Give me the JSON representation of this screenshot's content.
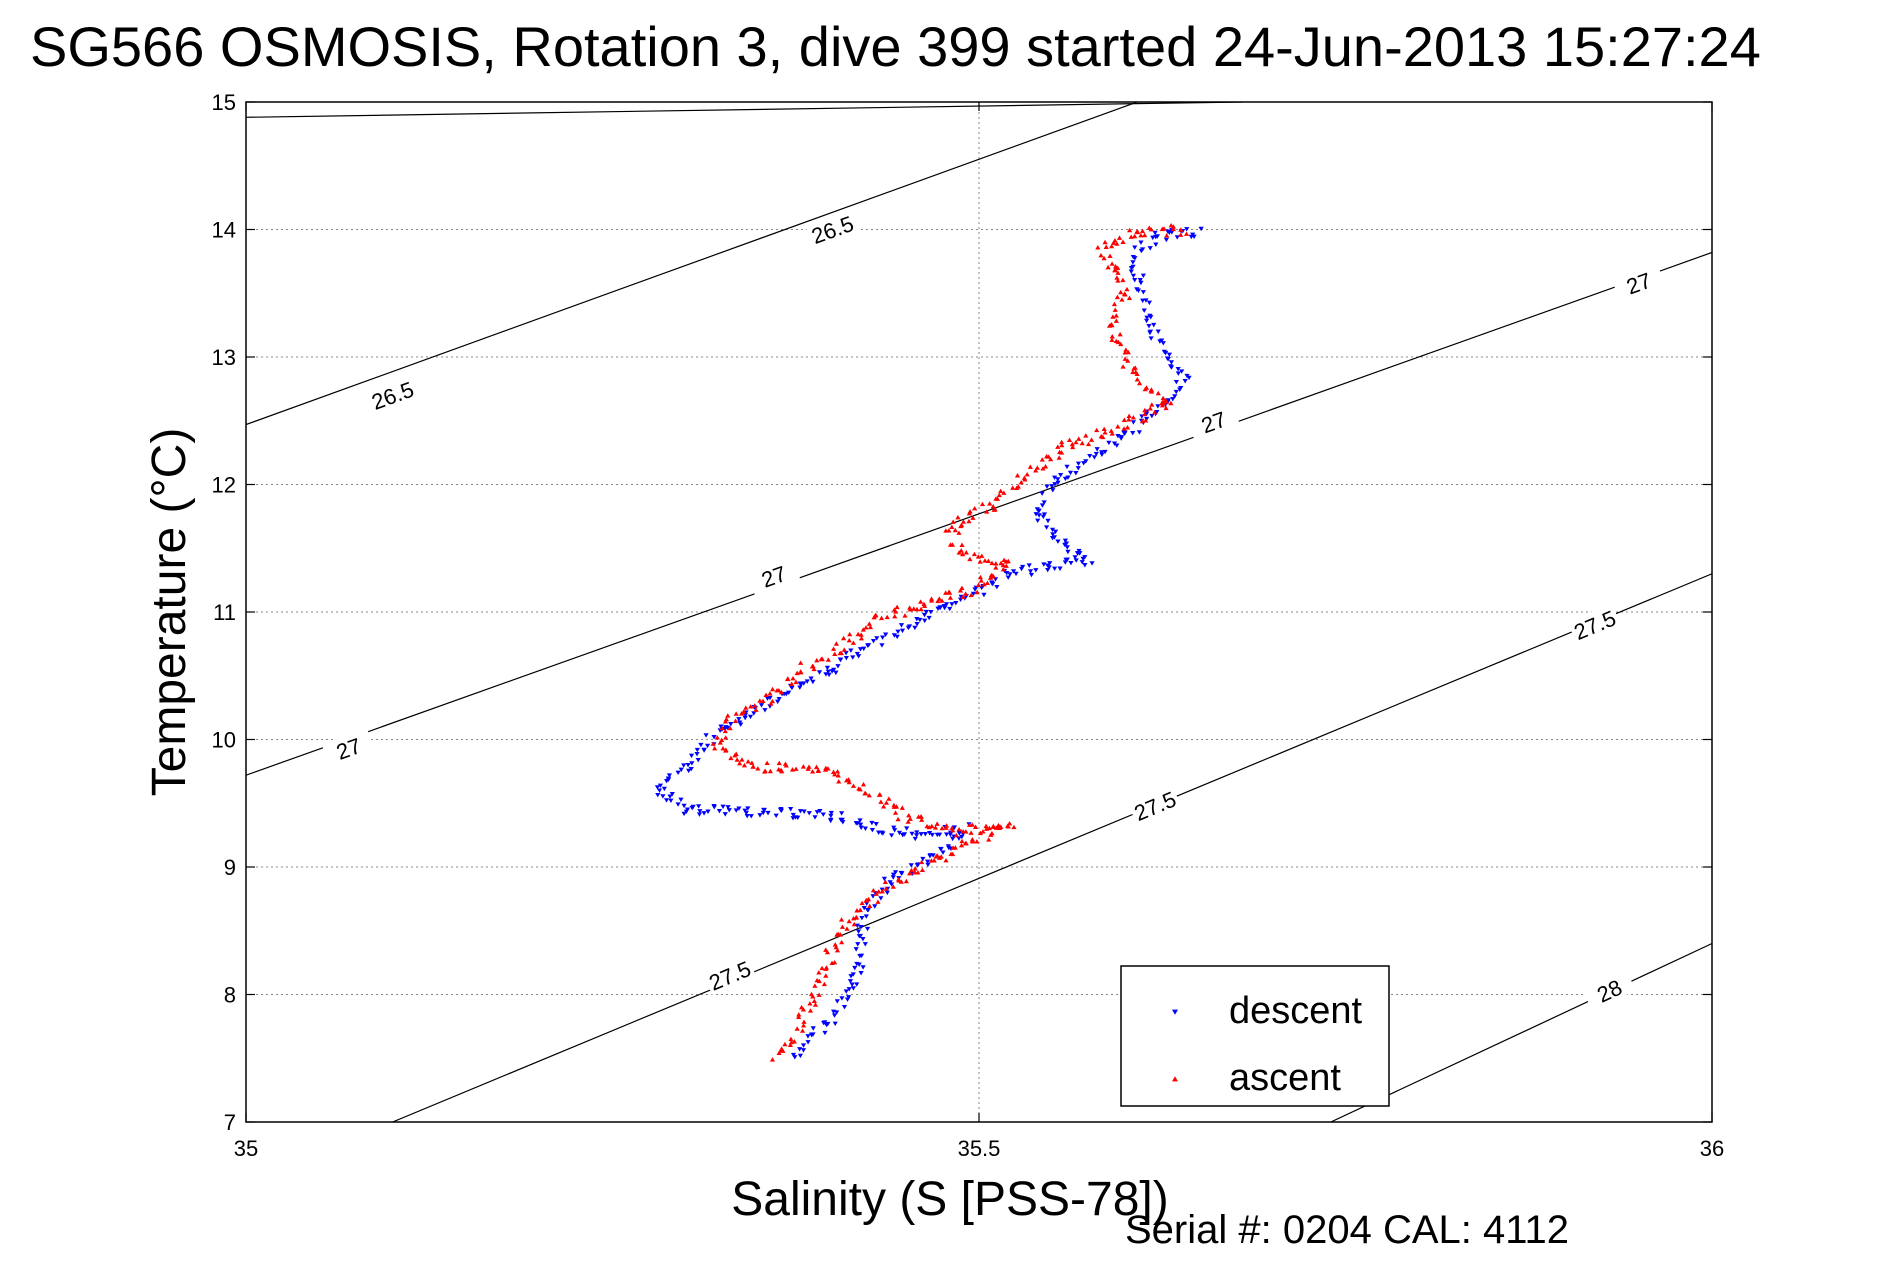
{
  "title": "SG566 OSMOSIS, Rotation 3, dive 399 started 24-Jun-2013 15:27:24",
  "footer": "Serial #: 0204  CAL: 4112",
  "colors": {
    "descent": "#0000ff",
    "ascent": "#ff0000",
    "axis": "#000000",
    "grid": "#888888"
  },
  "chart_data": {
    "type": "scatter",
    "title": "SG566 OSMOSIS, Rotation 3, dive 399 started 24-Jun-2013 15:27:24",
    "xlabel": "Salinity (S [PSS-78])",
    "ylabel": "Temperature (°C)",
    "xlim": [
      35,
      36
    ],
    "ylim": [
      7,
      15
    ],
    "xticks": [
      "35",
      "35.5",
      "36"
    ],
    "yticks": [
      "7",
      "8",
      "9",
      "10",
      "11",
      "12",
      "13",
      "14",
      "15"
    ],
    "grid": true,
    "legend": {
      "placement": "bottom-right",
      "entries": [
        "descent",
        "ascent"
      ]
    },
    "series": [
      {
        "name": "descent",
        "color": "#0000ff",
        "marker": "triangle-down",
        "path": [
          [
            35.65,
            13.97
          ],
          [
            35.62,
            13.95
          ],
          [
            35.605,
            13.8
          ],
          [
            35.61,
            13.55
          ],
          [
            35.615,
            13.3
          ],
          [
            35.625,
            13.05
          ],
          [
            35.64,
            12.85
          ],
          [
            35.625,
            12.6
          ],
          [
            35.6,
            12.4
          ],
          [
            35.575,
            12.2
          ],
          [
            35.55,
            12.0
          ],
          [
            35.54,
            11.75
          ],
          [
            35.555,
            11.55
          ],
          [
            35.575,
            11.42
          ],
          [
            35.52,
            11.3
          ],
          [
            35.49,
            11.1
          ],
          [
            35.46,
            10.95
          ],
          [
            35.43,
            10.75
          ],
          [
            35.39,
            10.5
          ],
          [
            35.35,
            10.25
          ],
          [
            35.32,
            10.05
          ],
          [
            35.3,
            9.8
          ],
          [
            35.28,
            9.6
          ],
          [
            35.3,
            9.45
          ],
          [
            35.36,
            9.42
          ],
          [
            35.4,
            9.4
          ],
          [
            35.43,
            9.3
          ],
          [
            35.46,
            9.25
          ],
          [
            35.49,
            9.3
          ],
          [
            35.48,
            9.15
          ],
          [
            35.44,
            8.9
          ],
          [
            35.42,
            8.6
          ],
          [
            35.42,
            8.25
          ],
          [
            35.41,
            8.0
          ],
          [
            35.4,
            7.8
          ],
          [
            35.38,
            7.6
          ],
          [
            35.37,
            7.5
          ]
        ]
      },
      {
        "name": "ascent",
        "color": "#ff0000",
        "marker": "triangle-up",
        "path": [
          [
            35.64,
            14.0
          ],
          [
            35.6,
            13.98
          ],
          [
            35.585,
            13.85
          ],
          [
            35.59,
            13.72
          ],
          [
            35.6,
            13.5
          ],
          [
            35.59,
            13.3
          ],
          [
            35.6,
            13.0
          ],
          [
            35.61,
            12.8
          ],
          [
            35.63,
            12.65
          ],
          [
            35.6,
            12.48
          ],
          [
            35.56,
            12.3
          ],
          [
            35.535,
            12.1
          ],
          [
            35.51,
            11.85
          ],
          [
            35.48,
            11.65
          ],
          [
            35.49,
            11.45
          ],
          [
            35.52,
            11.38
          ],
          [
            35.5,
            11.2
          ],
          [
            35.46,
            11.05
          ],
          [
            35.43,
            10.95
          ],
          [
            35.41,
            10.75
          ],
          [
            35.38,
            10.55
          ],
          [
            35.36,
            10.35
          ],
          [
            35.33,
            10.15
          ],
          [
            35.32,
            9.95
          ],
          [
            35.34,
            9.8
          ],
          [
            35.4,
            9.75
          ],
          [
            35.43,
            9.55
          ],
          [
            35.45,
            9.4
          ],
          [
            35.48,
            9.28
          ],
          [
            35.52,
            9.35
          ],
          [
            35.47,
            9.05
          ],
          [
            35.43,
            8.8
          ],
          [
            35.41,
            8.55
          ],
          [
            35.4,
            8.35
          ],
          [
            35.39,
            8.05
          ],
          [
            35.38,
            7.8
          ],
          [
            35.37,
            7.6
          ],
          [
            35.36,
            7.5
          ]
        ]
      }
    ],
    "contours": [
      {
        "label": "26.5",
        "points": [
          [
            35.0,
            14.88
          ],
          [
            35.68,
            15.0
          ]
        ],
        "labels_at": []
      },
      {
        "label": "26.5",
        "points": [
          [
            35.0,
            12.47
          ],
          [
            35.68,
            15.3
          ]
        ],
        "labels_at": [
          [
            35.4,
            14.0
          ],
          [
            35.1,
            12.7
          ]
        ]
      },
      {
        "label": "27",
        "points": [
          [
            35.0,
            9.72
          ],
          [
            36.0,
            13.82
          ]
        ],
        "labels_at": [
          [
            35.95,
            13.58
          ],
          [
            35.66,
            12.49
          ],
          [
            35.36,
            11.28
          ],
          [
            35.07,
            9.93
          ]
        ]
      },
      {
        "label": "27.5",
        "points": [
          [
            35.1,
            7.0
          ],
          [
            36.0,
            11.3
          ]
        ],
        "labels_at": [
          [
            35.92,
            10.9
          ],
          [
            35.62,
            9.48
          ],
          [
            35.33,
            8.15
          ]
        ]
      },
      {
        "label": "28",
        "points": [
          [
            35.74,
            7.0
          ],
          [
            36.0,
            8.4
          ]
        ],
        "labels_at": [
          [
            35.93,
            8.03
          ]
        ]
      }
    ]
  }
}
